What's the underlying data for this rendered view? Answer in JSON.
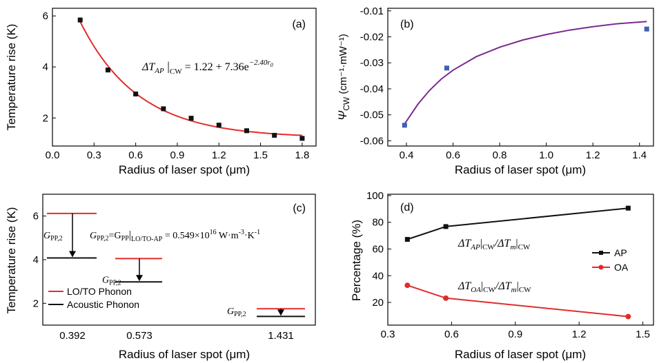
{
  "colors": {
    "red": "#e32b2b",
    "black": "#111111",
    "purple": "#7a2a8f",
    "blue": "#3f5fb5"
  },
  "chart_data": [
    {
      "panel": "(a)",
      "type": "scatter",
      "xlabel": "Radius of laser spot (μm)",
      "ylabel": "Temperature rise (K)",
      "xlim": [
        0.0,
        1.9
      ],
      "ylim": [
        0.9,
        6.3
      ],
      "xticks": [
        "0.0",
        "0.3",
        "0.6",
        "0.9",
        "1.2",
        "1.5",
        "1.8"
      ],
      "xtick_values": [
        0.0,
        0.3,
        0.6,
        0.9,
        1.2,
        1.5,
        1.8
      ],
      "yticks": [
        "2",
        "4",
        "6"
      ],
      "ytick_values": [
        2,
        4,
        6
      ],
      "points": {
        "x": [
          0.2,
          0.4,
          0.6,
          0.8,
          1.0,
          1.2,
          1.4,
          1.6,
          1.8
        ],
        "y": [
          5.84,
          3.88,
          2.94,
          2.36,
          1.99,
          1.72,
          1.5,
          1.32,
          1.2
        ]
      },
      "fit": {
        "a": 1.22,
        "b": 7.36,
        "c": 2.4,
        "from": 0.2,
        "to": 1.8
      },
      "equation": {
        "lhs": "ΔT",
        "sub": "AP",
        "cond": "CW",
        "rhs": "= 1.22 + 7.36e",
        "exp": "−2.40r",
        "exp_sub": "0"
      }
    },
    {
      "panel": "(b)",
      "type": "scatter",
      "xlabel": "Radius of laser spot (μm)",
      "ylabel": "Ψ",
      "ylabel_sub": "CW",
      "ylabel_unit": " (cm⁻¹·mW⁻¹)",
      "xlim": [
        0.32,
        1.46
      ],
      "ylim": [
        -0.062,
        -0.009
      ],
      "xticks": [
        "0.4",
        "0.6",
        "0.8",
        "1.0",
        "1.2",
        "1.4"
      ],
      "xtick_values": [
        0.4,
        0.6,
        0.8,
        1.0,
        1.2,
        1.4
      ],
      "yticks": [
        "-0.06",
        "-0.05",
        "-0.04",
        "-0.03",
        "-0.02",
        "-0.01"
      ],
      "ytick_values": [
        -0.06,
        -0.05,
        -0.04,
        -0.03,
        -0.02,
        -0.01
      ],
      "points": {
        "x": [
          0.392,
          0.573,
          1.431
        ],
        "y": [
          -0.054,
          -0.032,
          -0.017
        ]
      },
      "curve": {
        "x": [
          0.392,
          0.45,
          0.5,
          0.55,
          0.6,
          0.7,
          0.8,
          0.9,
          1.0,
          1.1,
          1.2,
          1.3,
          1.431
        ],
        "y": [
          -0.0535,
          -0.0458,
          -0.0405,
          -0.0362,
          -0.0328,
          -0.0276,
          -0.024,
          -0.0212,
          -0.0191,
          -0.0174,
          -0.0161,
          -0.015,
          -0.0141
        ]
      }
    },
    {
      "panel": "(c)",
      "type": "diagram",
      "xlabel": "Radius of laser spot (μm)",
      "ylabel": "Temperature rise (K)",
      "ylim": [
        1.0,
        7.0
      ],
      "yticks": [
        "2",
        "4",
        "6"
      ],
      "ytick_values": [
        2,
        4,
        6
      ],
      "categories": [
        "0.392",
        "0.573",
        "1.431"
      ],
      "lo_to": [
        6.12,
        4.05,
        1.75
      ],
      "acoustic": [
        4.08,
        2.98,
        1.4
      ],
      "gpp_label": "G",
      "gpp_sub": "PP,2",
      "equation": {
        "g": "G",
        "gsub": "PP,2",
        "eq1": "=G",
        "gsub2": "PP",
        "cond": "LO/TO-AP",
        "rhs": " = 0.549×10",
        "exp": "16",
        "unit": " W·m",
        "unit_exp1": "-3",
        "unit_mid": "·K",
        "unit_exp2": "-1"
      },
      "legend": [
        {
          "name": "LO/TO Phonon",
          "color": "#e32b2b"
        },
        {
          "name": "Acoustic Phonon",
          "color": "#111111"
        }
      ]
    },
    {
      "panel": "(d)",
      "type": "line",
      "xlabel": "Radius of laser spot (μm)",
      "ylabel": "Percentage (%)",
      "xlim": [
        0.3,
        1.55
      ],
      "ylim": [
        3,
        101
      ],
      "xticks": [
        "0.3",
        "0.6",
        "0.9",
        "1.2",
        "1.5"
      ],
      "xtick_values": [
        0.3,
        0.6,
        0.9,
        1.2,
        1.5
      ],
      "yticks": [
        "20",
        "40",
        "60",
        "80",
        "100"
      ],
      "ytick_values": [
        20,
        40,
        60,
        80,
        100
      ],
      "x": [
        0.392,
        0.573,
        1.431
      ],
      "series": [
        {
          "name": "AP",
          "values": [
            67.2,
            76.8,
            90.6
          ],
          "color": "#111111",
          "marker": "square"
        },
        {
          "name": "OA",
          "values": [
            32.8,
            23.2,
            9.4
          ],
          "color": "#e32b2b",
          "marker": "circle"
        }
      ],
      "annotations": [
        {
          "delta": "Δ",
          "t": "T",
          "s1": "AP",
          "c1": "CW",
          "slash": "/Δ",
          "t2": "T",
          "s2": "m",
          "c2": "CW"
        },
        {
          "delta": "Δ",
          "t": "T",
          "s1": "OA",
          "c1": "CW",
          "slash": "/Δ",
          "t2": "T",
          "s2": "m",
          "c2": "CW"
        }
      ]
    }
  ]
}
